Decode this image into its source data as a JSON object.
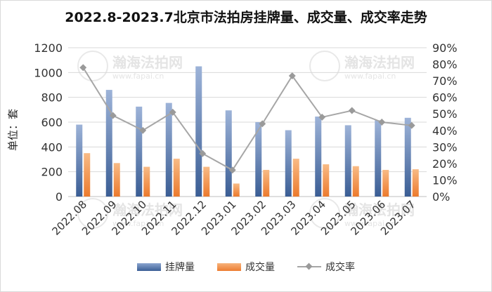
{
  "chart_data": {
    "type": "bar",
    "title": "2022.8-2023.7北京市法拍房挂牌量、成交量、成交率走势",
    "ylabel": "单位：套",
    "categories": [
      "2022.08",
      "2022.09",
      "2022.10",
      "2022.11",
      "2022.12",
      "2023.01",
      "2023.02",
      "2023.03",
      "2023.04",
      "2023.05",
      "2023.06",
      "2023.07"
    ],
    "series": [
      {
        "name": "挂牌量",
        "type": "bar",
        "axis": "left",
        "color": "#4a6fa5",
        "values": [
          580,
          860,
          725,
          755,
          1050,
          695,
          600,
          535,
          645,
          575,
          615,
          635
        ]
      },
      {
        "name": "成交量",
        "type": "bar",
        "axis": "left",
        "color": "#ed7d31",
        "values": [
          350,
          270,
          240,
          305,
          240,
          105,
          215,
          305,
          260,
          245,
          215,
          220
        ]
      },
      {
        "name": "成交率",
        "type": "line",
        "axis": "right",
        "color": "#a6a6a6",
        "values": [
          0.78,
          0.49,
          0.4,
          0.51,
          0.26,
          0.16,
          0.44,
          0.73,
          0.48,
          0.52,
          0.45,
          0.43
        ]
      }
    ],
    "ylim_left": [
      0,
      1200
    ],
    "yticks_left": [
      0,
      200,
      400,
      600,
      800,
      1000,
      1200
    ],
    "ylim_right": [
      0,
      0.9
    ],
    "yticks_right": [
      "0%",
      "10%",
      "20%",
      "30%",
      "40%",
      "50%",
      "60%",
      "70%",
      "80%",
      "90%"
    ],
    "grid": true,
    "legend_position": "bottom"
  },
  "watermark": {
    "text": "瀚海法拍网",
    "url": "www.fapai.cn"
  }
}
